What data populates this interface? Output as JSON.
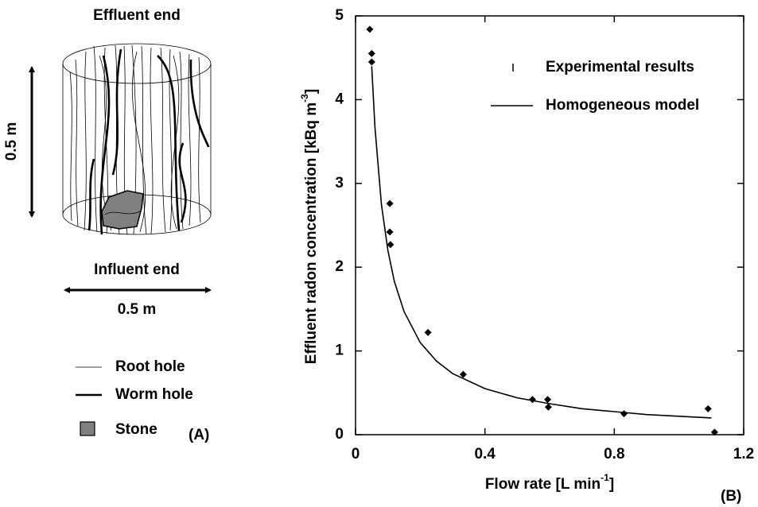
{
  "diagram": {
    "top_label": "Effluent end",
    "bottom_label": "Influent end",
    "height_label": "0.5 m",
    "width_label": "0.5 m",
    "legend": [
      "Root hole",
      "Worm hole",
      "Stone"
    ],
    "panel_label": "(A)"
  },
  "chart_data": {
    "type": "scatter",
    "panel_label": "(B)",
    "xlabel": {
      "text": "Flow rate [L min",
      "sup": "-1",
      "end": "]"
    },
    "ylabel": {
      "text": "Effluent radon concentration [kBq m",
      "sup": "-3",
      "end": "]"
    },
    "xlim": [
      0,
      1.2
    ],
    "xticks": [
      0,
      0.4,
      0.8,
      1.2
    ],
    "ylim": [
      0,
      5
    ],
    "yticks": [
      0,
      1,
      2,
      3,
      4,
      5
    ],
    "series": [
      {
        "name": "Experimental results",
        "marker": "diamond",
        "color": "#000000",
        "x": [
          0.044,
          0.05,
          0.05,
          0.106,
          0.106,
          0.108,
          0.224,
          0.333,
          0.547,
          0.594,
          0.596,
          0.83,
          1.09,
          1.11
        ],
        "values": [
          4.84,
          4.55,
          4.45,
          2.76,
          2.42,
          2.27,
          1.22,
          0.72,
          0.42,
          0.42,
          0.33,
          0.25,
          0.31,
          0.03
        ]
      },
      {
        "name": "Homogeneous model",
        "marker": "line",
        "color": "#000000",
        "x": [
          0.05,
          0.06,
          0.08,
          0.1,
          0.12,
          0.15,
          0.2,
          0.25,
          0.3,
          0.4,
          0.5,
          0.6,
          0.7,
          0.8,
          0.9,
          1.0,
          1.1
        ],
        "values": [
          4.4,
          3.67,
          2.75,
          2.2,
          1.83,
          1.47,
          1.1,
          0.88,
          0.73,
          0.55,
          0.44,
          0.37,
          0.31,
          0.275,
          0.24,
          0.22,
          0.2
        ]
      }
    ]
  }
}
